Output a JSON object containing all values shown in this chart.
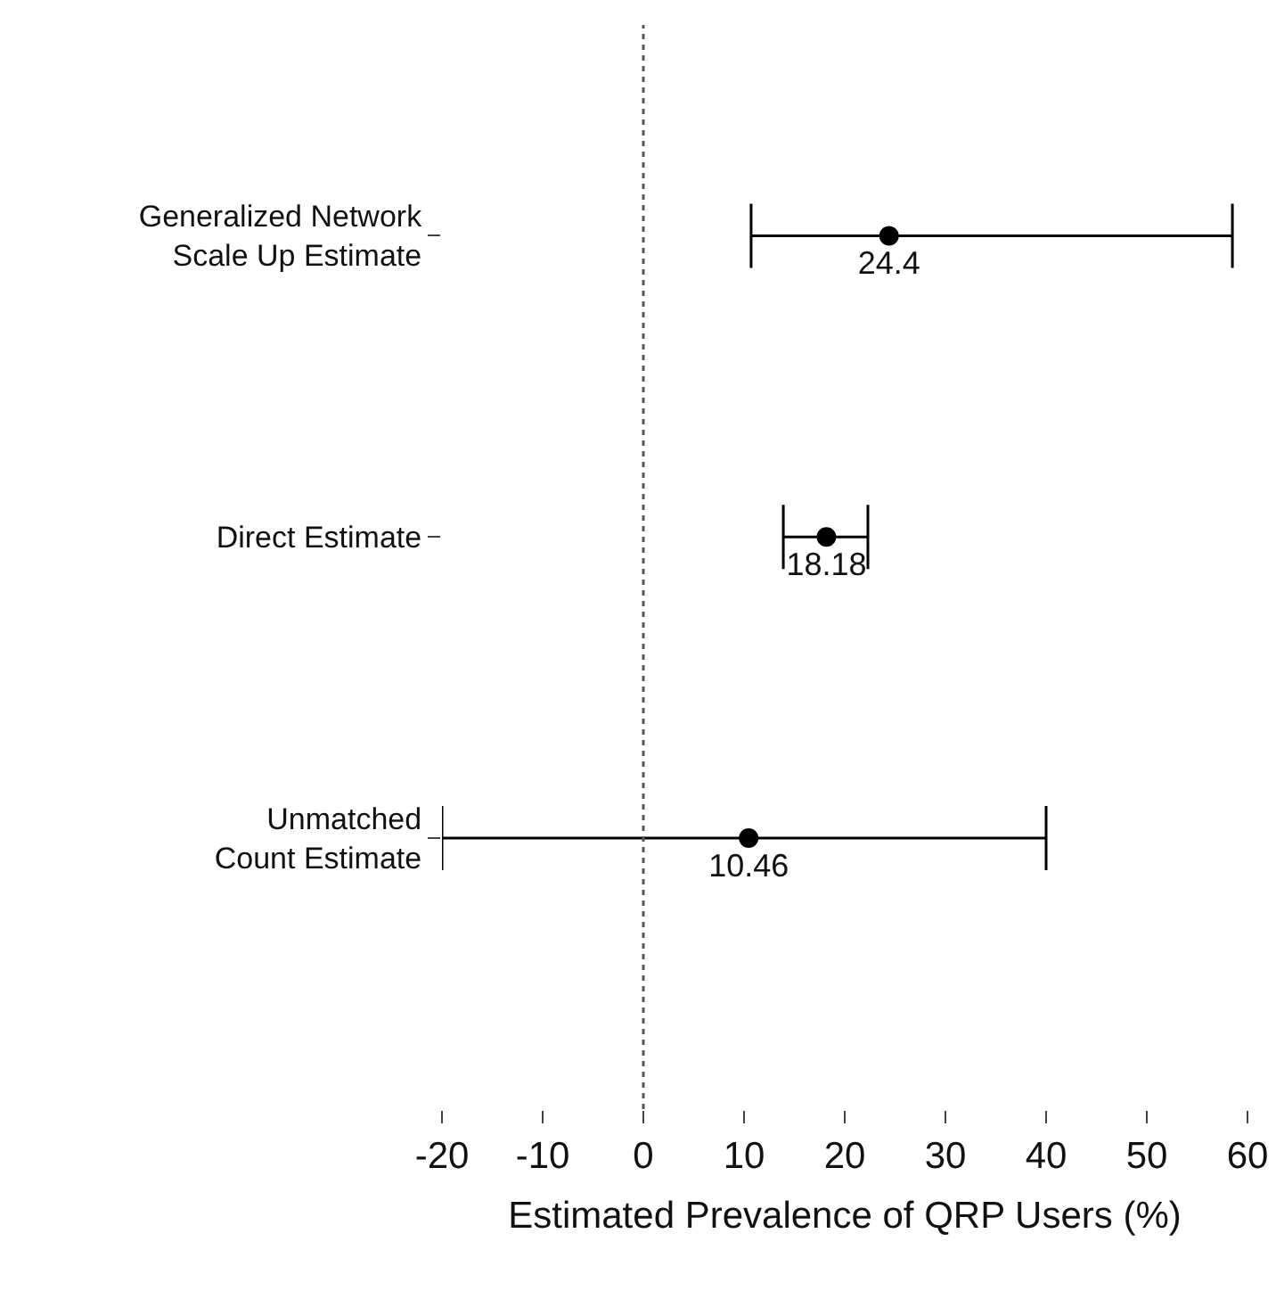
{
  "chart_data": {
    "type": "scatter",
    "orientation": "horizontal",
    "xlabel": "Estimated Prevalence of QRP Users (%)",
    "categories": [
      "Generalized Network\nScale Up Estimate",
      "Direct Estimate",
      "Unmatched\nCount Estimate"
    ],
    "values": [
      24.4,
      18.18,
      10.46
    ],
    "errors": [
      [
        10.7,
        58.5
      ],
      [
        13.9,
        22.3
      ],
      [
        -20,
        40
      ]
    ],
    "value_labels": [
      "24.4",
      "18.18",
      "10.46"
    ],
    "color": "#000000",
    "marker": "circle",
    "xlim": [
      -20,
      60
    ],
    "xticks": [
      -20,
      -10,
      0,
      10,
      20,
      30,
      40,
      50,
      60
    ],
    "ref_lines": [
      {
        "axis": "x",
        "value": 0,
        "line_style": "dotted",
        "color": "#555555"
      }
    ]
  }
}
